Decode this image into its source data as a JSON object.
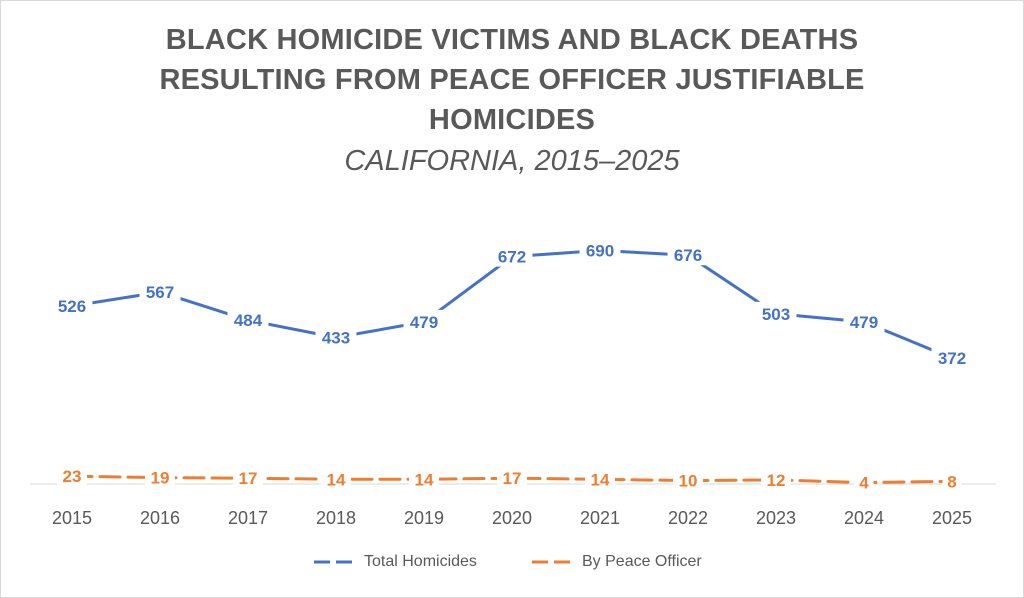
{
  "title_lines": [
    "BLACK HOMICIDE VICTIMS AND BLACK DEATHS",
    "RESULTING FROM PEACE OFFICER JUSTIFIABLE",
    "HOMICIDES"
  ],
  "subtitle": "CALIFORNIA, 2015–2025",
  "chart_data": {
    "type": "line",
    "title": "BLACK HOMICIDE VICTIMS AND BLACK DEATHS RESULTING FROM PEACE OFFICER JUSTIFIABLE HOMICIDES",
    "subtitle": "CALIFORNIA, 2015–2025",
    "categories": [
      "2015",
      "2016",
      "2017",
      "2018",
      "2019",
      "2020",
      "2021",
      "2022",
      "2023",
      "2024",
      "2025"
    ],
    "series": [
      {
        "name": "Total Homicides",
        "color": "#4472c4",
        "dash": "solid",
        "values": [
          526,
          567,
          484,
          433,
          479,
          672,
          690,
          676,
          503,
          479,
          372
        ]
      },
      {
        "name": "By Peace Officer",
        "color": "#ed7d31",
        "dash": "dashed",
        "values": [
          23,
          19,
          17,
          14,
          14,
          17,
          14,
          10,
          12,
          4,
          8
        ]
      }
    ],
    "ylim": [
      0,
      720
    ],
    "xlabel": "",
    "ylabel": "",
    "grid": false,
    "y_axis_visible": false,
    "data_labels": true,
    "legend_position": "bottom"
  }
}
